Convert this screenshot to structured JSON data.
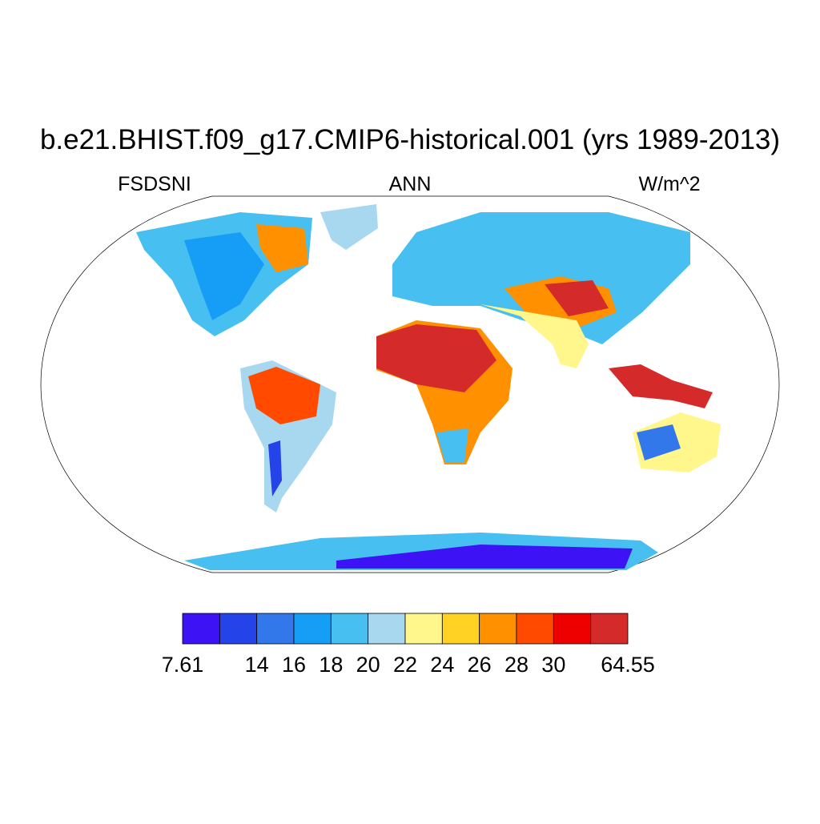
{
  "title": "b.e21.BHIST.f09_g17.CMIP6-historical.001 (yrs 1989-2013)",
  "left_string": "FSDSNI",
  "center_string": "ANN",
  "right_string": "W/m^2",
  "colorbar": {
    "colors": [
      "#3d12f5",
      "#2443e8",
      "#3278ea",
      "#169ef6",
      "#47bff0",
      "#a7d8ef",
      "#fff68c",
      "#ffd224",
      "#ff9000",
      "#ff4a00",
      "#ee0000",
      "#d42a2a"
    ],
    "ticks": [
      7.61,
      null,
      14,
      16,
      18,
      20,
      22,
      24,
      26,
      28,
      30,
      null,
      64.55
    ]
  }
}
